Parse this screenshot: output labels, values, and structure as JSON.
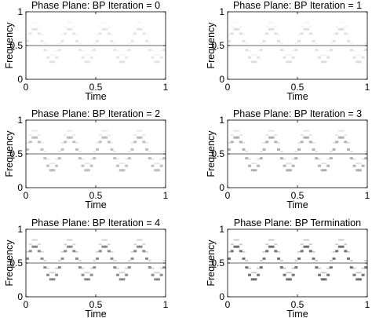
{
  "chart_data": [
    {
      "type": "heatmap",
      "title": "Phase Plane: BP Iteration = 0",
      "xlabel": "Time",
      "ylabel": "Frequency",
      "xlim": [
        0,
        1
      ],
      "ylim": [
        0,
        1
      ],
      "x_ticks": [
        "0",
        "0.5",
        "1"
      ],
      "y_ticks": [
        "0",
        "0.5",
        "1"
      ],
      "reference_line_y": 0.5,
      "intensity": 0.1
    },
    {
      "type": "heatmap",
      "title": "Phase Plane: BP Iteration = 1",
      "xlabel": "Time",
      "ylabel": "Frequency",
      "xlim": [
        0,
        1
      ],
      "ylim": [
        0,
        1
      ],
      "x_ticks": [
        "0",
        "0.5",
        "1"
      ],
      "y_ticks": [
        "0",
        "0.5",
        "1"
      ],
      "reference_line_y": 0.5,
      "intensity": 0.12
    },
    {
      "type": "heatmap",
      "title": "Phase Plane: BP Iteration = 2",
      "xlabel": "Time",
      "ylabel": "Frequency",
      "xlim": [
        0,
        1
      ],
      "ylim": [
        0,
        1
      ],
      "x_ticks": [
        "0",
        "0.5",
        "1"
      ],
      "y_ticks": [
        "0",
        "0.5",
        "1"
      ],
      "reference_line_y": 0.5,
      "intensity": 0.25
    },
    {
      "type": "heatmap",
      "title": "Phase Plane: BP Iteration = 3",
      "xlabel": "Time",
      "ylabel": "Frequency",
      "xlim": [
        0,
        1
      ],
      "ylim": [
        0,
        1
      ],
      "x_ticks": [
        "0",
        "0.5",
        "1"
      ],
      "y_ticks": [
        "0",
        "0.5",
        "1"
      ],
      "reference_line_y": 0.5,
      "intensity": 0.3
    },
    {
      "type": "heatmap",
      "title": "Phase Plane: BP Iteration = 4",
      "xlabel": "Time",
      "ylabel": "Frequency",
      "xlim": [
        0,
        1
      ],
      "ylim": [
        0,
        1
      ],
      "x_ticks": [
        "0",
        "0.5",
        "1"
      ],
      "y_ticks": [
        "0",
        "0.5",
        "1"
      ],
      "reference_line_y": 0.5,
      "intensity": 0.45
    },
    {
      "type": "heatmap",
      "title": "Phase Plane: BP Termination",
      "xlabel": "Time",
      "ylabel": "Frequency",
      "xlim": [
        0,
        1
      ],
      "ylim": [
        0,
        1
      ],
      "x_ticks": [
        "0",
        "0.5",
        "1"
      ],
      "y_ticks": [
        "0",
        "0.5",
        "1"
      ],
      "reference_line_y": 0.5,
      "intensity": 0.55
    }
  ],
  "signal": {
    "periods": 4,
    "freq_max": 0.75,
    "freq_min": 0.25,
    "time_bins": 48
  },
  "colors": {
    "axis": "#000000",
    "reference_line": "#666666",
    "cell": "#000000"
  }
}
